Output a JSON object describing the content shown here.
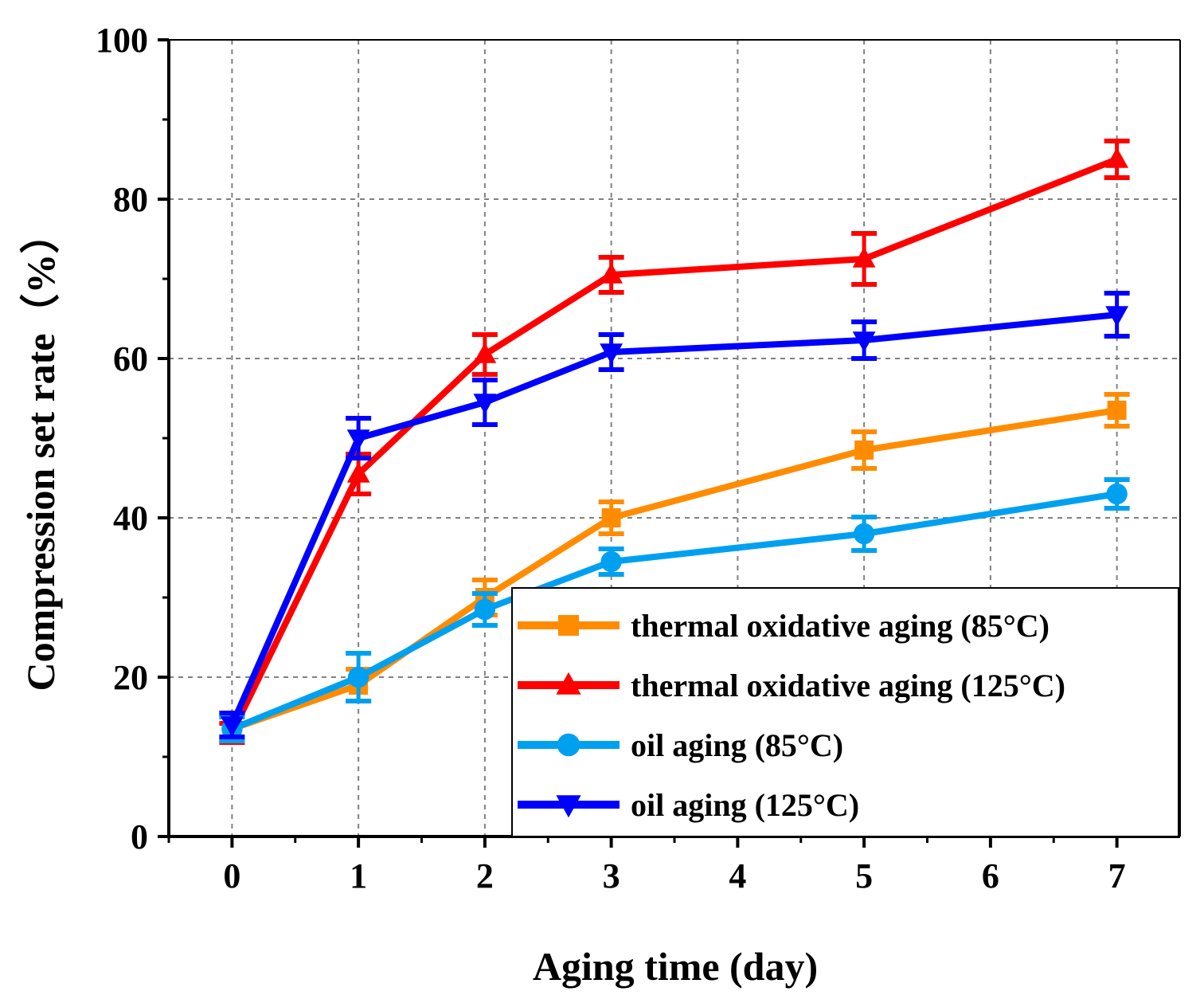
{
  "chart_data": {
    "type": "line",
    "title": "",
    "xlabel": "Aging time (day)",
    "ylabel": "Compression set rate（%）",
    "xlim": [
      -0.5,
      7.5
    ],
    "ylim": [
      0,
      100
    ],
    "x_ticks": [
      0,
      1,
      2,
      3,
      4,
      5,
      6,
      7
    ],
    "y_ticks": [
      0,
      20,
      40,
      60,
      80,
      100
    ],
    "grid": true,
    "legend_position": "bottom-right",
    "x": [
      0,
      1,
      2,
      3,
      5,
      7
    ],
    "series": [
      {
        "name": "thermal oxidative aging (85°C)",
        "color": "#FF8C00",
        "marker": "square",
        "values": [
          13.5,
          19,
          30,
          40,
          48.5,
          53.5
        ],
        "errors": [
          1.5,
          2,
          2.2,
          2,
          2.3,
          2
        ]
      },
      {
        "name": "thermal oxidative aging (125°C)",
        "color": "#FF0000",
        "marker": "triangle-up",
        "values": [
          13,
          45.5,
          60.5,
          70.5,
          72.5,
          85
        ],
        "errors": [
          1.2,
          2.5,
          2.5,
          2.2,
          3.2,
          2.3
        ]
      },
      {
        "name": "oil aging (85°C)",
        "color": "#00A0F0",
        "marker": "circle",
        "values": [
          13.5,
          20,
          28.5,
          34.5,
          38,
          43
        ],
        "errors": [
          1.5,
          3,
          2,
          1.6,
          2.1,
          1.8
        ]
      },
      {
        "name": "oil aging (125°C)",
        "color": "#0000FF",
        "marker": "triangle-down",
        "values": [
          14,
          50,
          54.5,
          60.8,
          62.3,
          65.5
        ],
        "errors": [
          1.5,
          2.5,
          2.8,
          2.2,
          2.3,
          2.7
        ]
      }
    ]
  }
}
